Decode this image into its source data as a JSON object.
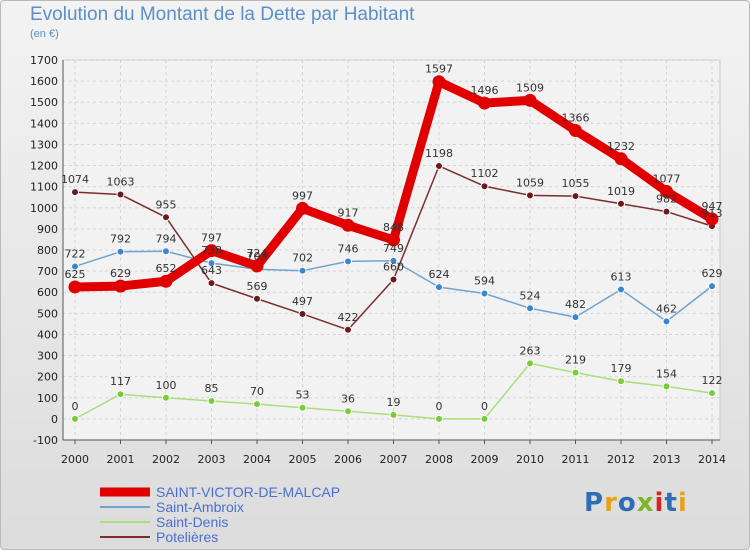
{
  "title": "Evolution du Montant de la Dette par Habitant",
  "subtitle": "(en €)",
  "logo": "Proxiti",
  "logo_colors": [
    "#2f6db5",
    "#e8a21a",
    "#2f6db5",
    "#7ab627",
    "#d9231f",
    "#2f6db5",
    "#e8a21a"
  ],
  "chart_data": {
    "type": "line",
    "title": "Evolution du Montant de la Dette par Habitant",
    "subtitle": "(en €)",
    "xlabel": "",
    "ylabel": "",
    "x": [
      "2000",
      "2001",
      "2002",
      "2003",
      "2004",
      "2005",
      "2006",
      "2007",
      "2008",
      "2009",
      "2010",
      "2011",
      "2012",
      "2013",
      "2014"
    ],
    "ylim": [
      -100,
      1700
    ],
    "yticks": [
      -100,
      0,
      100,
      200,
      300,
      400,
      500,
      600,
      700,
      800,
      900,
      1000,
      1100,
      1200,
      1300,
      1400,
      1500,
      1600,
      1700
    ],
    "grid": true,
    "legend_position": "bottom-left",
    "series": [
      {
        "name": "SAINT-VICTOR-DE-MALCAP",
        "color": "#e00000",
        "marker": "#e00000",
        "emphasis": true,
        "values": [
          625,
          629,
          652,
          797,
          724,
          997,
          917,
          848,
          1597,
          1496,
          1509,
          1366,
          1232,
          1077,
          947
        ]
      },
      {
        "name": "Saint-Ambroix",
        "color": "#6fa3d2",
        "marker": "#3b86cf",
        "emphasis": false,
        "values": [
          722,
          792,
          794,
          738,
          709,
          702,
          746,
          749,
          624,
          594,
          524,
          482,
          613,
          462,
          629
        ]
      },
      {
        "name": "Saint-Denis",
        "color": "#a8e07c",
        "marker": "#77cc3a",
        "emphasis": false,
        "values": [
          0,
          117,
          100,
          85,
          70,
          53,
          36,
          19,
          0,
          0,
          263,
          219,
          179,
          154,
          122
        ]
      },
      {
        "name": "Potelières",
        "color": "#7a2e2e",
        "marker": "#6b1a1a",
        "emphasis": false,
        "values": [
          1074,
          1063,
          955,
          643,
          569,
          497,
          422,
          660,
          1198,
          1102,
          1059,
          1055,
          1019,
          982,
          913
        ]
      }
    ],
    "data_labels": {
      "SAINT-VICTOR-DE-MALCAP": [
        "625",
        "629",
        "652",
        "797",
        "724",
        "997",
        "917",
        "848",
        "1597",
        "1496",
        "1509",
        "1366",
        "1232",
        "1077",
        "947"
      ],
      "Saint-Ambroix": [
        "722",
        "792",
        "794",
        "738",
        "709",
        "702",
        "746",
        "749",
        "624",
        "594",
        "524",
        "482",
        "613",
        "462",
        "629"
      ],
      "Saint-Denis": [
        "0",
        "117",
        "100",
        "85",
        "70",
        "53",
        "36",
        "19",
        "0",
        "0",
        "263",
        "219",
        "179",
        "154",
        "122"
      ],
      "Potelières": [
        "1074",
        "1063",
        "955",
        "643",
        "569",
        "497",
        "422",
        "660",
        "1198",
        "1102",
        "1059",
        "1055",
        "1019",
        "982",
        "913"
      ]
    }
  }
}
